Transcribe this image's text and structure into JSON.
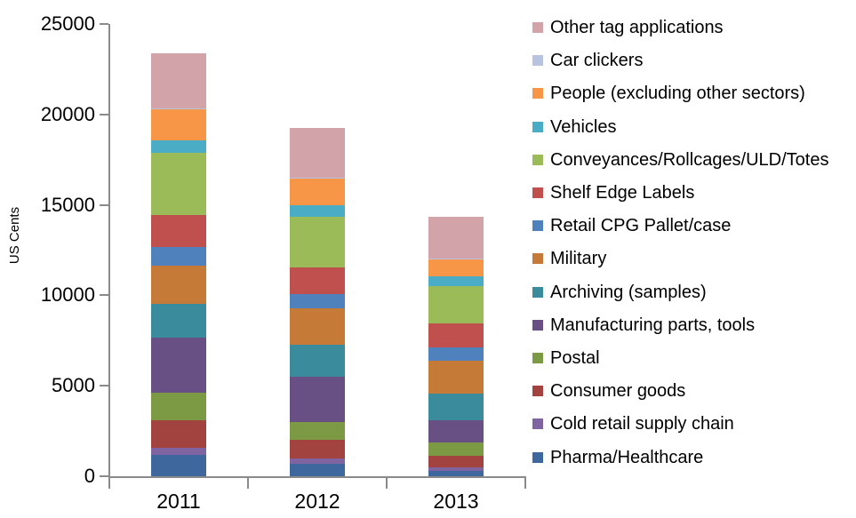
{
  "chart_data": {
    "type": "bar",
    "stacked": true,
    "title": "",
    "xlabel": "",
    "ylabel": "US Cents",
    "ylim": [
      0,
      25000
    ],
    "yticks": [
      0,
      5000,
      10000,
      15000,
      20000,
      25000
    ],
    "categories": [
      "2011",
      "2012",
      "2013"
    ],
    "grid": false,
    "legend_position": "right",
    "legend_order": "reverse-of-stack",
    "series": [
      {
        "name": "Pharma/Healthcare",
        "color": "#3e689d",
        "values": [
          1200,
          700,
          290
        ]
      },
      {
        "name": "Cold retail supply chain",
        "color": "#8064a2",
        "values": [
          350,
          270,
          220
        ]
      },
      {
        "name": "Consumer goods",
        "color": "#a3433f",
        "values": [
          1550,
          1060,
          620
        ]
      },
      {
        "name": "Postal",
        "color": "#7c9944",
        "values": [
          1500,
          980,
          740
        ]
      },
      {
        "name": "Manufacturing parts, tools",
        "color": "#685084",
        "values": [
          3050,
          2490,
          1230
        ]
      },
      {
        "name": "Archiving (samples)",
        "color": "#3a8c9c",
        "values": [
          1880,
          1770,
          1460
        ]
      },
      {
        "name": "Military",
        "color": "#c67a38",
        "values": [
          2130,
          2010,
          1840
        ]
      },
      {
        "name": "Retail CPG Pallet/case",
        "color": "#4f81bd",
        "values": [
          1030,
          780,
          710
        ]
      },
      {
        "name": "Shelf Edge Labels",
        "color": "#c0504d",
        "values": [
          1760,
          1470,
          1350
        ]
      },
      {
        "name": "Conveyances/Rollcages/ULD/Totes",
        "color": "#9bbb59",
        "values": [
          3430,
          2810,
          2030
        ]
      },
      {
        "name": "Vehicles",
        "color": "#4bacc6",
        "values": [
          690,
          620,
          540
        ]
      },
      {
        "name": "People (excluding other sectors)",
        "color": "#f79646",
        "values": [
          1700,
          1490,
          950
        ]
      },
      {
        "name": "Car clickers",
        "color": "#b7c3df",
        "values": [
          60,
          60,
          40
        ]
      },
      {
        "name": "Other tag applications",
        "color": "#d2a3a8",
        "values": [
          3060,
          2750,
          2330
        ]
      }
    ]
  }
}
